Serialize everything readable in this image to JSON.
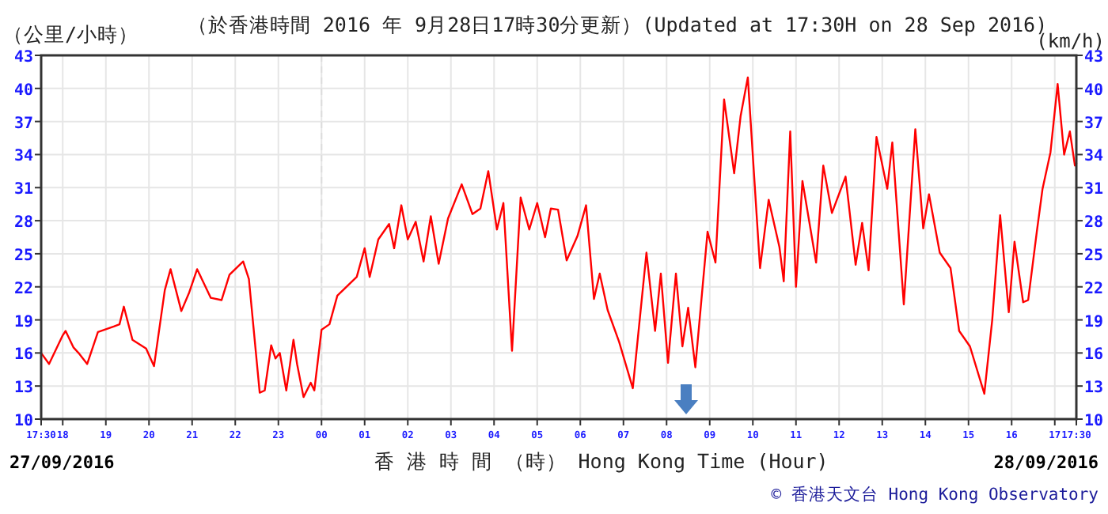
{
  "chart_data": {
    "type": "line",
    "title": "（於香港時間 2016 年 9月28日17時30分更新）(Updated at 17:30H on 28 Sep 2016)",
    "ylabel": "（公里/小時）",
    "y2label": "(km/h)",
    "xlabel": "香 港 時 間 （時） Hong Kong Time (Hour)",
    "annotations": [
      "27/09/2016",
      "28/09/2016",
      "© 香港天文台 Hong Kong Observatory"
    ],
    "xlim": [
      "2016-09-27T17:30",
      "2016-09-28T17:30"
    ],
    "xticks": [
      {
        "value": "2016-09-27T17:30",
        "label": "17:30"
      },
      {
        "value": "2016-09-27T18:00",
        "label": "18"
      },
      {
        "value": "2016-09-27T19:00",
        "label": "19"
      },
      {
        "value": "2016-09-27T20:00",
        "label": "20"
      },
      {
        "value": "2016-09-27T21:00",
        "label": "21"
      },
      {
        "value": "2016-09-27T22:00",
        "label": "22"
      },
      {
        "value": "2016-09-27T23:00",
        "label": "23"
      },
      {
        "value": "2016-09-28T00:00",
        "label": "00"
      },
      {
        "value": "2016-09-28T01:00",
        "label": "01"
      },
      {
        "value": "2016-09-28T02:00",
        "label": "02"
      },
      {
        "value": "2016-09-28T03:00",
        "label": "03"
      },
      {
        "value": "2016-09-28T04:00",
        "label": "04"
      },
      {
        "value": "2016-09-28T05:00",
        "label": "05"
      },
      {
        "value": "2016-09-28T06:00",
        "label": "06"
      },
      {
        "value": "2016-09-28T07:00",
        "label": "07"
      },
      {
        "value": "2016-09-28T08:00",
        "label": "08"
      },
      {
        "value": "2016-09-28T09:00",
        "label": "09"
      },
      {
        "value": "2016-09-28T10:00",
        "label": "10"
      },
      {
        "value": "2016-09-28T11:00",
        "label": "11"
      },
      {
        "value": "2016-09-28T12:00",
        "label": "12"
      },
      {
        "value": "2016-09-28T13:00",
        "label": "13"
      },
      {
        "value": "2016-09-28T14:00",
        "label": "14"
      },
      {
        "value": "2016-09-28T15:00",
        "label": "15"
      },
      {
        "value": "2016-09-28T16:00",
        "label": "16"
      },
      {
        "value": "2016-09-28T17:00",
        "label": "17"
      },
      {
        "value": "2016-09-28T17:30",
        "label": "17:30"
      }
    ],
    "ylim": [
      10,
      43
    ],
    "yticks": [
      10,
      13,
      16,
      19,
      22,
      25,
      28,
      31,
      34,
      37,
      40,
      43
    ],
    "y2lim": [
      10,
      43
    ],
    "y2ticks": [
      10,
      13,
      16,
      19,
      22,
      25,
      28,
      31,
      34,
      37,
      40,
      43
    ],
    "grid": true,
    "ref_lines": [
      {
        "axis": "x",
        "value": "2016-09-28T00:00",
        "line_style": "dashed",
        "color": "#dddddd"
      }
    ],
    "series": [
      {
        "color": "#ff0000",
        "x": [
          "2016-09-27T17:30",
          "2016-09-27T17:41",
          "2016-09-27T18:00",
          "2016-09-27T18:04",
          "2016-09-27T18:15",
          "2016-09-27T18:22",
          "2016-09-27T18:34",
          "2016-09-27T18:49",
          "2016-09-27T19:11",
          "2016-09-27T19:19",
          "2016-09-27T19:25",
          "2016-09-27T19:37",
          "2016-09-27T19:56",
          "2016-09-27T20:07",
          "2016-09-27T20:22",
          "2016-09-27T20:30",
          "2016-09-27T20:45",
          "2016-09-27T20:56",
          "2016-09-27T21:07",
          "2016-09-27T21:26",
          "2016-09-27T21:41",
          "2016-09-27T21:52",
          "2016-09-27T22:11",
          "2016-09-27T22:19",
          "2016-09-27T22:34",
          "2016-09-27T22:41",
          "2016-09-27T22:50",
          "2016-09-27T22:56",
          "2016-09-27T23:02",
          "2016-09-27T23:11",
          "2016-09-27T23:21",
          "2016-09-27T23:26",
          "2016-09-27T23:35",
          "2016-09-27T23:45",
          "2016-09-27T23:50",
          "2016-09-28T00:00",
          "2016-09-28T00:11",
          "2016-09-28T00:22",
          "2016-09-28T00:49",
          "2016-09-28T01:00",
          "2016-09-28T01:07",
          "2016-09-28T01:19",
          "2016-09-28T01:34",
          "2016-09-28T01:41",
          "2016-09-28T01:51",
          "2016-09-28T02:00",
          "2016-09-28T02:11",
          "2016-09-28T02:22",
          "2016-09-28T02:32",
          "2016-09-28T02:43",
          "2016-09-28T02:56",
          "2016-09-28T03:15",
          "2016-09-28T03:30",
          "2016-09-28T03:41",
          "2016-09-28T03:52",
          "2016-09-28T04:04",
          "2016-09-28T04:13",
          "2016-09-28T04:25",
          "2016-09-28T04:37",
          "2016-09-28T04:49",
          "2016-09-28T05:00",
          "2016-09-28T05:11",
          "2016-09-28T05:19",
          "2016-09-28T05:29",
          "2016-09-28T05:41",
          "2016-09-28T05:56",
          "2016-09-28T06:08",
          "2016-09-28T06:19",
          "2016-09-28T06:27",
          "2016-09-28T06:38",
          "2016-09-28T06:54",
          "2016-09-28T07:13",
          "2016-09-28T07:32",
          "2016-09-28T07:44",
          "2016-09-28T07:52",
          "2016-09-28T08:02",
          "2016-09-28T08:13",
          "2016-09-28T08:22",
          "2016-09-28T08:30",
          "2016-09-28T08:40",
          "2016-09-28T08:57",
          "2016-09-28T09:08",
          "2016-09-28T09:20",
          "2016-09-28T09:34",
          "2016-09-28T09:43",
          "2016-09-28T09:53",
          "2016-09-28T10:10",
          "2016-09-28T10:22",
          "2016-09-28T10:37",
          "2016-09-28T10:43",
          "2016-09-28T10:52",
          "2016-09-28T11:00",
          "2016-09-28T11:09",
          "2016-09-28T11:28",
          "2016-09-28T11:38",
          "2016-09-28T11:50",
          "2016-09-28T12:09",
          "2016-09-28T12:23",
          "2016-09-28T12:32",
          "2016-09-28T12:41",
          "2016-09-28T12:52",
          "2016-09-28T13:07",
          "2016-09-28T13:14",
          "2016-09-28T13:30",
          "2016-09-28T13:46",
          "2016-09-28T13:57",
          "2016-09-28T14:05",
          "2016-09-28T14:20",
          "2016-09-28T14:35",
          "2016-09-28T14:47",
          "2016-09-28T15:02",
          "2016-09-28T15:22",
          "2016-09-28T15:33",
          "2016-09-28T15:44",
          "2016-09-28T15:56",
          "2016-09-28T16:04",
          "2016-09-28T16:16",
          "2016-09-28T16:23",
          "2016-09-28T16:35",
          "2016-09-28T16:43",
          "2016-09-28T16:54",
          "2016-09-28T17:04",
          "2016-09-28T17:13",
          "2016-09-28T17:21",
          "2016-09-28T17:28",
          "2016-09-28T17:30"
        ],
        "values": [
          16.0,
          15.0,
          17.6,
          18.0,
          16.5,
          16.0,
          15.0,
          17.9,
          18.4,
          18.6,
          20.2,
          17.2,
          16.4,
          14.8,
          21.7,
          23.6,
          19.8,
          21.5,
          23.6,
          21.0,
          20.8,
          23.1,
          24.3,
          22.7,
          12.4,
          12.6,
          16.7,
          15.5,
          16.0,
          12.6,
          17.2,
          15.0,
          12.0,
          13.3,
          12.6,
          18.1,
          18.6,
          21.2,
          22.9,
          25.5,
          22.9,
          26.3,
          27.7,
          25.5,
          29.4,
          26.3,
          27.9,
          24.3,
          28.4,
          24.1,
          28.2,
          31.3,
          28.6,
          29.1,
          32.5,
          27.2,
          29.6,
          16.2,
          30.1,
          27.2,
          29.6,
          26.5,
          29.1,
          29.0,
          24.4,
          26.6,
          29.4,
          20.9,
          23.2,
          19.9,
          17.0,
          12.8,
          25.1,
          18.0,
          23.2,
          15.1,
          23.2,
          16.6,
          20.1,
          14.7,
          27.0,
          24.2,
          39.0,
          32.3,
          37.5,
          41.0,
          23.7,
          29.9,
          25.6,
          22.5,
          36.1,
          22.0,
          31.6,
          24.2,
          33.0,
          28.7,
          32.0,
          24.0,
          27.8,
          23.5,
          35.6,
          30.9,
          35.1,
          20.4,
          36.3,
          27.3,
          30.4,
          25.1,
          23.7,
          18.0,
          16.6,
          12.3,
          19.0,
          28.5,
          19.7,
          26.1,
          20.6,
          20.8,
          27.0,
          30.9,
          34.2,
          40.4,
          34.0,
          36.1,
          33.0,
          33.2
        ]
      }
    ]
  }
}
